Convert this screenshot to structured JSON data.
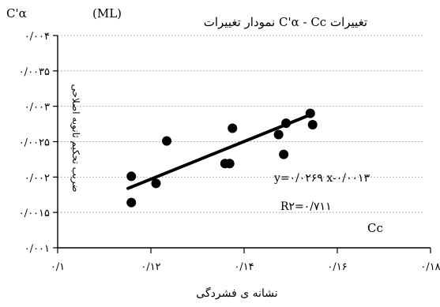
{
  "chart_data": {
    "type": "scatter",
    "title": "نمودار تغییرات  C'α - Cc  تغییرات",
    "y_unit_label": "C'α",
    "unit_note": "(ML)",
    "xlabel": "نشانه ی فشردگی",
    "ylabel": "ضریب تحکیم ثانویه اصلاحی",
    "x_axis_name": "Cc",
    "xlim": [
      0.1,
      0.18
    ],
    "ylim": [
      0.001,
      0.004
    ],
    "x_ticks": [
      0.1,
      0.12,
      0.14,
      0.16,
      0.18
    ],
    "x_tick_labels": [
      "۰/۱",
      "۰/۱۲",
      "۰/۱۴",
      "۰/۱۶",
      "۰/۱۸"
    ],
    "y_ticks": [
      0.001,
      0.0015,
      0.002,
      0.0025,
      0.003,
      0.0035,
      0.004
    ],
    "y_tick_labels": [
      "۰/۰۰۱",
      "۰/۰۰۱۵",
      "۰/۰۰۲",
      "۰/۰۰۲۵",
      "۰/۰۰۳",
      "۰/۰۰۳۵",
      "۰/۰۰۴"
    ],
    "grid": {
      "horizontal": true,
      "style": "dotted",
      "vertical": false
    },
    "points": [
      {
        "x": 0.1158,
        "y": 0.00201
      },
      {
        "x": 0.1158,
        "y": 0.00164
      },
      {
        "x": 0.1211,
        "y": 0.00191
      },
      {
        "x": 0.1234,
        "y": 0.00251
      },
      {
        "x": 0.1359,
        "y": 0.00219
      },
      {
        "x": 0.1369,
        "y": 0.00219
      },
      {
        "x": 0.1375,
        "y": 0.00269
      },
      {
        "x": 0.1474,
        "y": 0.0026
      },
      {
        "x": 0.1485,
        "y": 0.00232
      },
      {
        "x": 0.149,
        "y": 0.00276
      },
      {
        "x": 0.1542,
        "y": 0.0029
      },
      {
        "x": 0.1547,
        "y": 0.00274
      }
    ],
    "trendline": {
      "x_range": [
        0.1151,
        0.1542
      ],
      "y_range": [
        0.00184,
        0.00288
      ]
    },
    "equation_label": "y=۰/۰۲۶۹ x-۰/۰۰۱۳",
    "r2_label": "R۲=۰/۷۱۱",
    "colors": {
      "points": "#000000",
      "line": "#000000",
      "grid": "#9a9a9a",
      "axis": "#000000"
    }
  }
}
